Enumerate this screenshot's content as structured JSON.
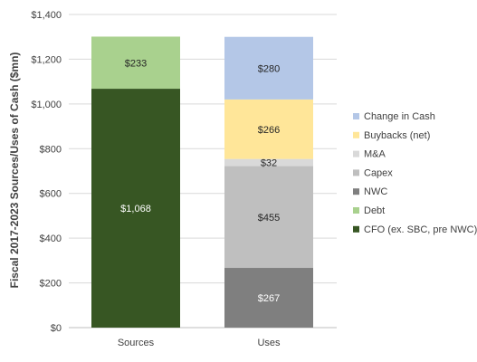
{
  "chart_data": {
    "type": "bar",
    "stacked": true,
    "title": "",
    "xlabel": "",
    "ylabel": "Fiscal 2017-2023 Sources/Uses of Cash ($mn)",
    "ylim": [
      0,
      1400
    ],
    "yticks": [
      0,
      200,
      400,
      600,
      800,
      1000,
      1200,
      1400
    ],
    "ytick_labels": [
      "$0",
      "$200",
      "$400",
      "$600",
      "$800",
      "$1,000",
      "$1,200",
      "$1,400"
    ],
    "grid": true,
    "legend_position": "right",
    "categories": [
      "Sources",
      "Uses"
    ],
    "series": [
      {
        "name": "CFO (ex. SBC, pre NWC)",
        "color": "#375623",
        "label_color": "#ffffff",
        "values": [
          1068,
          0
        ],
        "labels": [
          "$1,068",
          ""
        ]
      },
      {
        "name": "Debt",
        "color": "#a9d18e",
        "label_color": "#262626",
        "values": [
          233,
          0
        ],
        "labels": [
          "$233",
          ""
        ]
      },
      {
        "name": "NWC",
        "color": "#7f7f7f",
        "label_color": "#ffffff",
        "values": [
          0,
          267
        ],
        "labels": [
          "",
          "$267"
        ]
      },
      {
        "name": "Capex",
        "color": "#bfbfbf",
        "label_color": "#262626",
        "values": [
          0,
          455
        ],
        "labels": [
          "",
          "$455"
        ]
      },
      {
        "name": "M&A",
        "color": "#d9d9d9",
        "label_color": "#262626",
        "values": [
          0,
          32
        ],
        "labels": [
          "",
          "$32"
        ]
      },
      {
        "name": "Buybacks (net)",
        "color": "#ffe699",
        "label_color": "#262626",
        "values": [
          0,
          266
        ],
        "labels": [
          "",
          "$266"
        ]
      },
      {
        "name": "Change in Cash",
        "color": "#b4c7e7",
        "label_color": "#262626",
        "values": [
          0,
          280
        ],
        "labels": [
          "",
          "$280"
        ]
      }
    ],
    "legend_order": [
      "Change in Cash",
      "Buybacks (net)",
      "M&A",
      "Capex",
      "NWC",
      "Debt",
      "CFO (ex. SBC, pre NWC)"
    ]
  }
}
